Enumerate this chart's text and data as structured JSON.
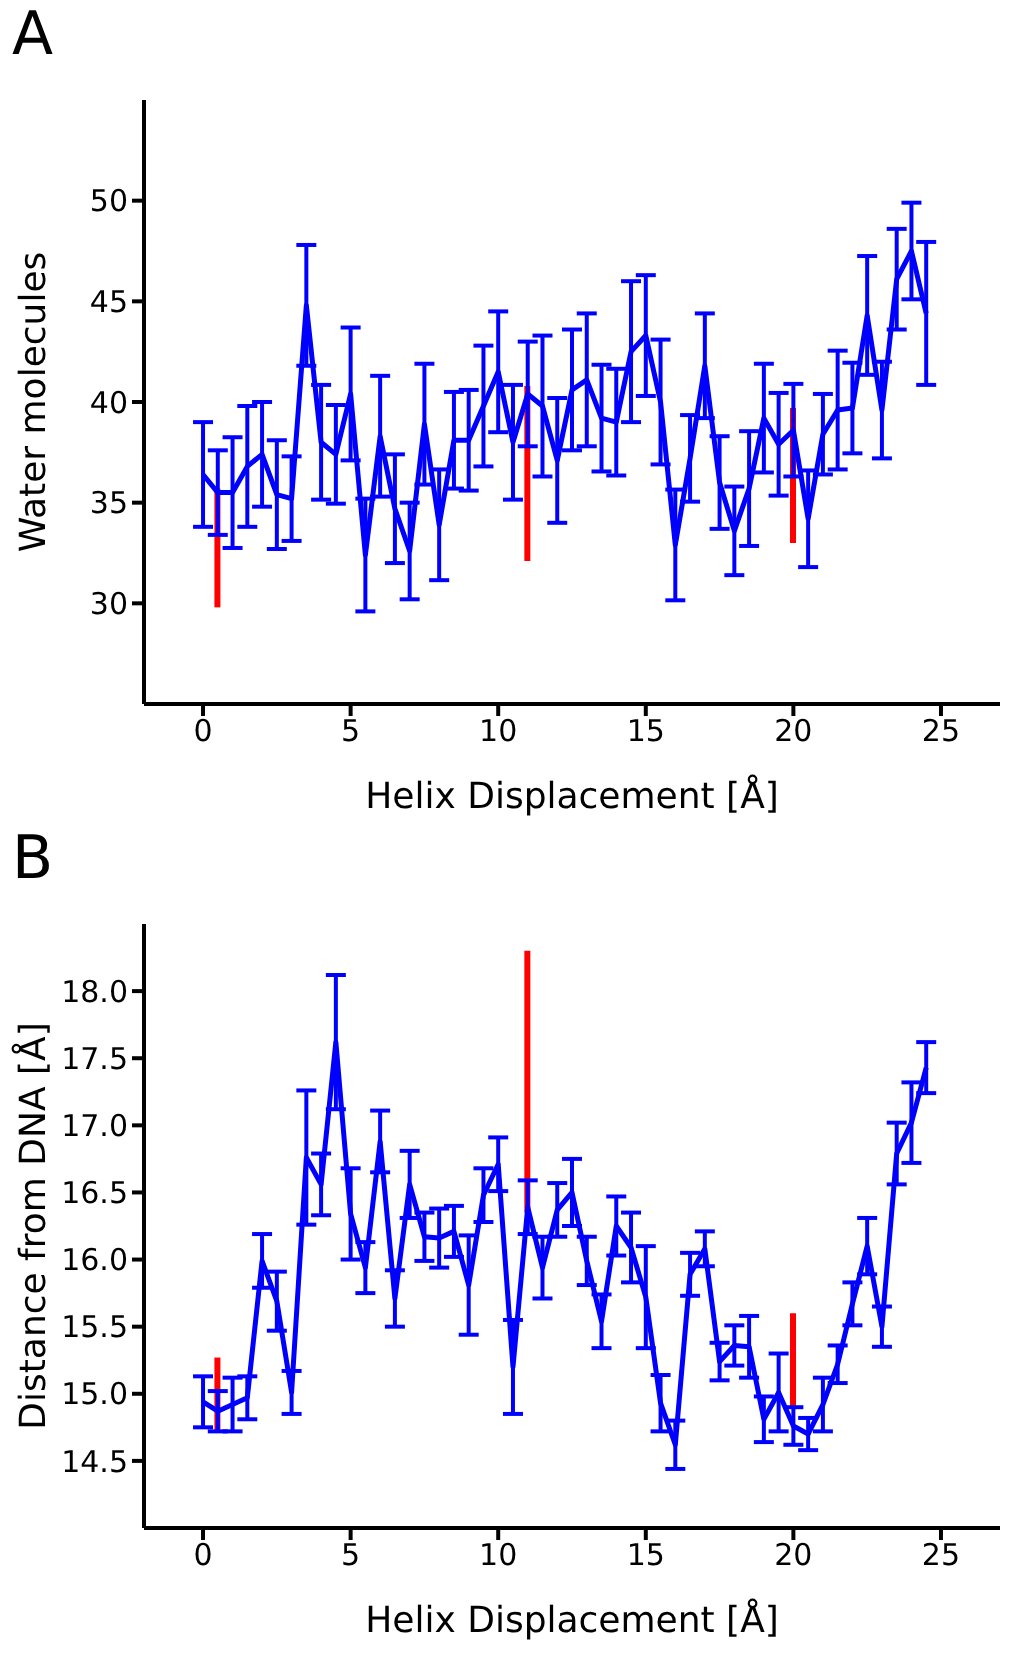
{
  "chart_data": [
    {
      "type": "line",
      "title": "A",
      "xlabel": "Helix Displacement [Å]",
      "ylabel": "Water molecules",
      "xlim": [
        -2,
        27
      ],
      "xticks": [
        0,
        5,
        10,
        15,
        20,
        25
      ],
      "ylim": [
        25,
        55
      ],
      "yticks": [
        30,
        35,
        40,
        45,
        50
      ],
      "grid": false,
      "legend": false,
      "marker": "none",
      "line_style": "solid",
      "x": [
        0,
        0.5,
        1,
        1.5,
        2,
        2.5,
        3,
        3.5,
        4,
        4.5,
        5,
        5.5,
        6,
        6.5,
        7,
        7.5,
        8,
        8.5,
        9,
        9.5,
        10,
        10.5,
        11,
        11.5,
        12,
        12.5,
        13,
        13.5,
        14,
        14.5,
        15,
        15.5,
        16,
        16.5,
        17,
        17.5,
        18,
        18.5,
        19,
        19.5,
        20,
        20.5,
        21,
        21.5,
        22,
        22.5,
        23,
        23.5,
        24,
        24.5
      ],
      "series": [
        {
          "color": "#0000ff",
          "values": [
            36.4,
            35.5,
            35.5,
            36.8,
            37.4,
            35.4,
            35.2,
            44.8,
            38.0,
            37.4,
            40.4,
            32.4,
            38.3,
            34.7,
            32.6,
            38.9,
            33.9,
            38.1,
            38.1,
            39.8,
            41.5,
            38.0,
            40.4,
            39.8,
            37.1,
            40.6,
            41.1,
            39.2,
            39.0,
            42.5,
            43.3,
            40.0,
            32.9,
            37.2,
            41.8,
            36.0,
            33.6,
            35.7,
            39.2,
            37.9,
            38.6,
            34.2,
            38.4,
            39.6,
            39.7,
            44.3,
            39.6,
            46.1,
            47.5,
            44.4
          ],
          "errors": [
            2.6,
            2.1,
            2.75,
            3,
            2.6,
            2.7,
            2.1,
            3,
            2.85,
            2.45,
            3.3,
            2.8,
            3,
            2.7,
            2.4,
            3,
            2.75,
            2.4,
            2.5,
            3,
            3,
            2.85,
            2.6,
            3.5,
            3.1,
            3,
            3.3,
            2.65,
            2.65,
            3.5,
            3,
            3.1,
            2.75,
            2.15,
            2.6,
            2.3,
            2.2,
            2.85,
            2.7,
            2.55,
            2.3,
            2.4,
            2,
            2.95,
            2.25,
            2.95,
            2.4,
            2.5,
            2.4,
            3.55
          ]
        },
        {
          "type": "bar",
          "color": "#ff0000",
          "x": [
            0.5,
            11,
            20
          ],
          "base": [
            29.8,
            32.1,
            33.0
          ],
          "values": [
            5.9,
            8.7,
            6.7
          ]
        }
      ]
    },
    {
      "type": "line",
      "title": "B",
      "xlabel": "Helix Displacement [Å]",
      "ylabel": "Distance from DNA [Å]",
      "xlim": [
        -2,
        27
      ],
      "xticks": [
        0,
        5,
        10,
        15,
        20,
        25
      ],
      "ylim": [
        14,
        18.5
      ],
      "yticks": [
        {
          "value": 14.5,
          "label": "14.5"
        },
        {
          "value": 15,
          "label": "15.0"
        },
        {
          "value": 15.5,
          "label": "15.5"
        },
        {
          "value": 16,
          "label": "16.0"
        },
        {
          "value": 16.5,
          "label": "16.5"
        },
        {
          "value": 17,
          "label": "17.0"
        },
        {
          "value": 17.5,
          "label": "17.5"
        },
        {
          "value": 18,
          "label": "18.0"
        }
      ],
      "grid": false,
      "legend": false,
      "marker": "none",
      "line_style": "solid",
      "x": [
        0,
        0.5,
        1,
        1.5,
        2,
        2.5,
        3,
        3.5,
        4,
        4.5,
        5,
        5.5,
        6,
        6.5,
        7,
        7.5,
        8,
        8.5,
        9,
        9.5,
        10,
        10.5,
        11,
        11.5,
        12,
        12.5,
        13,
        13.5,
        14,
        14.5,
        15,
        15.5,
        16,
        16.5,
        17,
        17.5,
        18,
        18.5,
        19,
        19.5,
        20,
        20.5,
        21,
        21.5,
        22,
        22.5,
        23,
        23.5,
        24,
        24.5
      ],
      "series": [
        {
          "color": "#0000ff",
          "values": [
            14.94,
            14.87,
            14.92,
            14.97,
            15.99,
            15.69,
            15.01,
            16.76,
            16.56,
            17.62,
            16.34,
            15.94,
            16.88,
            15.71,
            16.56,
            16.17,
            16.16,
            16.21,
            15.81,
            16.48,
            16.71,
            15.2,
            16.39,
            15.94,
            16.37,
            16.5,
            15.99,
            15.54,
            16.25,
            16.09,
            15.72,
            14.93,
            14.62,
            15.89,
            16.08,
            15.24,
            15.36,
            15.35,
            14.81,
            15.01,
            14.76,
            14.7,
            14.92,
            15.22,
            15.67,
            16.1,
            15.5,
            16.79,
            17.02,
            17.43
          ],
          "errors": [
            0.19,
            0.15,
            0.2,
            0.16,
            0.2,
            0.22,
            0.16,
            0.5,
            0.23,
            0.5,
            0.34,
            0.19,
            0.23,
            0.21,
            0.25,
            0.18,
            0.22,
            0.19,
            0.37,
            0.2,
            0.2,
            0.35,
            0.2,
            0.23,
            0.2,
            0.25,
            0.18,
            0.2,
            0.22,
            0.26,
            0.38,
            0.21,
            0.18,
            0.16,
            0.13,
            0.14,
            0.15,
            0.23,
            0.17,
            0.29,
            0.14,
            0.12,
            0.2,
            0.14,
            0.16,
            0.21,
            0.15,
            0.23,
            0.3,
            0.19
          ]
        },
        {
          "type": "bar",
          "color": "#ff0000",
          "x": [
            0.5,
            11,
            20
          ],
          "base": [
            14.71,
            16.35,
            14.9
          ],
          "values": [
            0.56,
            1.95,
            0.7
          ]
        }
      ]
    }
  ]
}
